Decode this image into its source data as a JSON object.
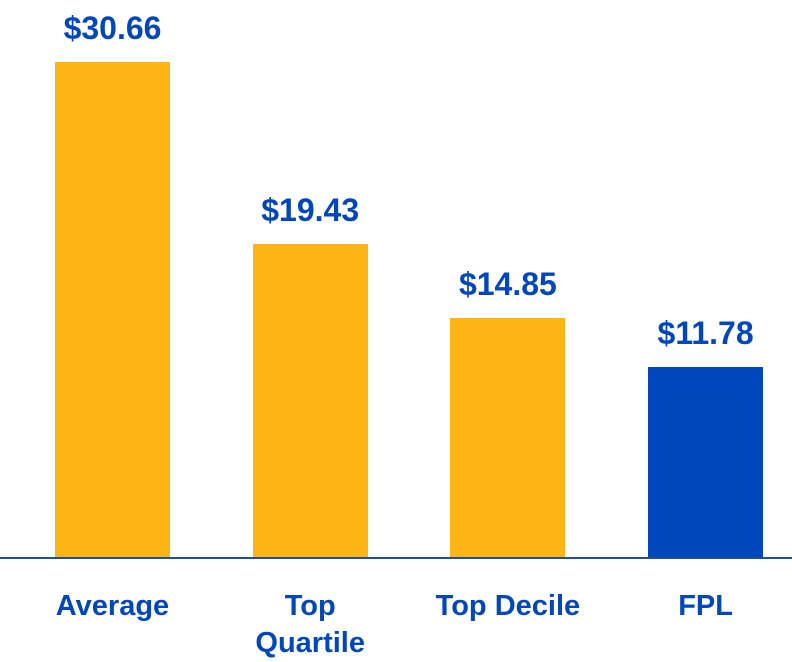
{
  "chart_data": {
    "type": "bar",
    "categories": [
      "Average",
      "Top Quartile",
      "Top Decile",
      "FPL"
    ],
    "values": [
      30.66,
      19.43,
      14.85,
      11.78
    ],
    "value_labels": [
      "$30.66",
      "$19.43",
      "$14.85",
      "$11.78"
    ],
    "colors": [
      "#fdb515",
      "#fdb515",
      "#fdb515",
      "#0047bb"
    ],
    "ylim": [
      0,
      30.66
    ]
  }
}
